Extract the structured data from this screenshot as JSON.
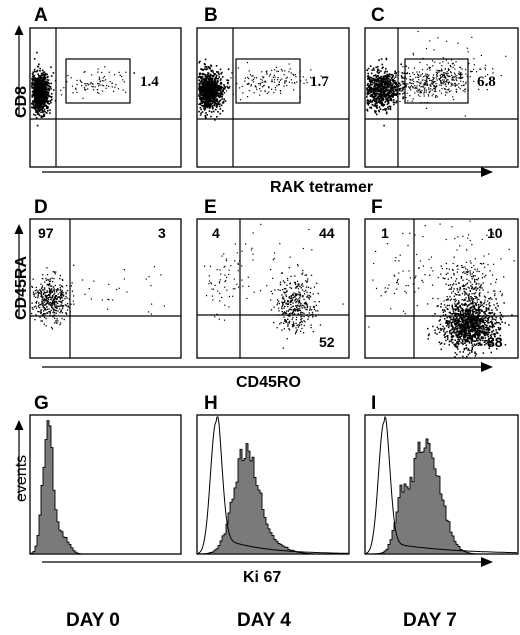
{
  "chart_data": [
    {
      "type": "scatter",
      "panel": "A",
      "xlabel": "",
      "ylabel": "",
      "gate_value": "1.4",
      "quadrant_values": []
    },
    {
      "type": "scatter",
      "panel": "B",
      "gate_value": "1.7",
      "quadrant_values": []
    },
    {
      "type": "scatter",
      "panel": "C",
      "gate_value": "6.8",
      "quadrant_values": []
    },
    {
      "type": "scatter",
      "panel": "D",
      "quadrants": {
        "upper_left": "97",
        "upper_right": "3",
        "lower_right": ""
      }
    },
    {
      "type": "scatter",
      "panel": "E",
      "quadrants": {
        "upper_left": "4",
        "upper_right": "44",
        "lower_right": "52"
      }
    },
    {
      "type": "scatter",
      "panel": "F",
      "quadrants": {
        "upper_left": "1",
        "upper_right": "10",
        "lower_right": "88"
      }
    },
    {
      "type": "area",
      "panel": "G",
      "overlay": false
    },
    {
      "type": "area",
      "panel": "H",
      "overlay": true
    },
    {
      "type": "area",
      "panel": "I",
      "overlay": true
    }
  ],
  "labels": {
    "panels": [
      "A",
      "B",
      "C",
      "D",
      "E",
      "F",
      "G",
      "H",
      "I"
    ],
    "row1": {
      "y": "CD8",
      "x": "RAK tetramer"
    },
    "row2": {
      "y": "CD45RA",
      "x": "CD45RO"
    },
    "row3": {
      "y": "events",
      "x": "Ki 67"
    },
    "days": [
      "DAY 0",
      "DAY 4",
      "DAY 7"
    ],
    "gate_values": [
      "1.4",
      "1.7",
      "6.8"
    ],
    "quad": {
      "D": [
        "97",
        "3"
      ],
      "E": [
        "4",
        "44",
        "52"
      ],
      "F": [
        "1",
        "10",
        "88"
      ]
    }
  }
}
